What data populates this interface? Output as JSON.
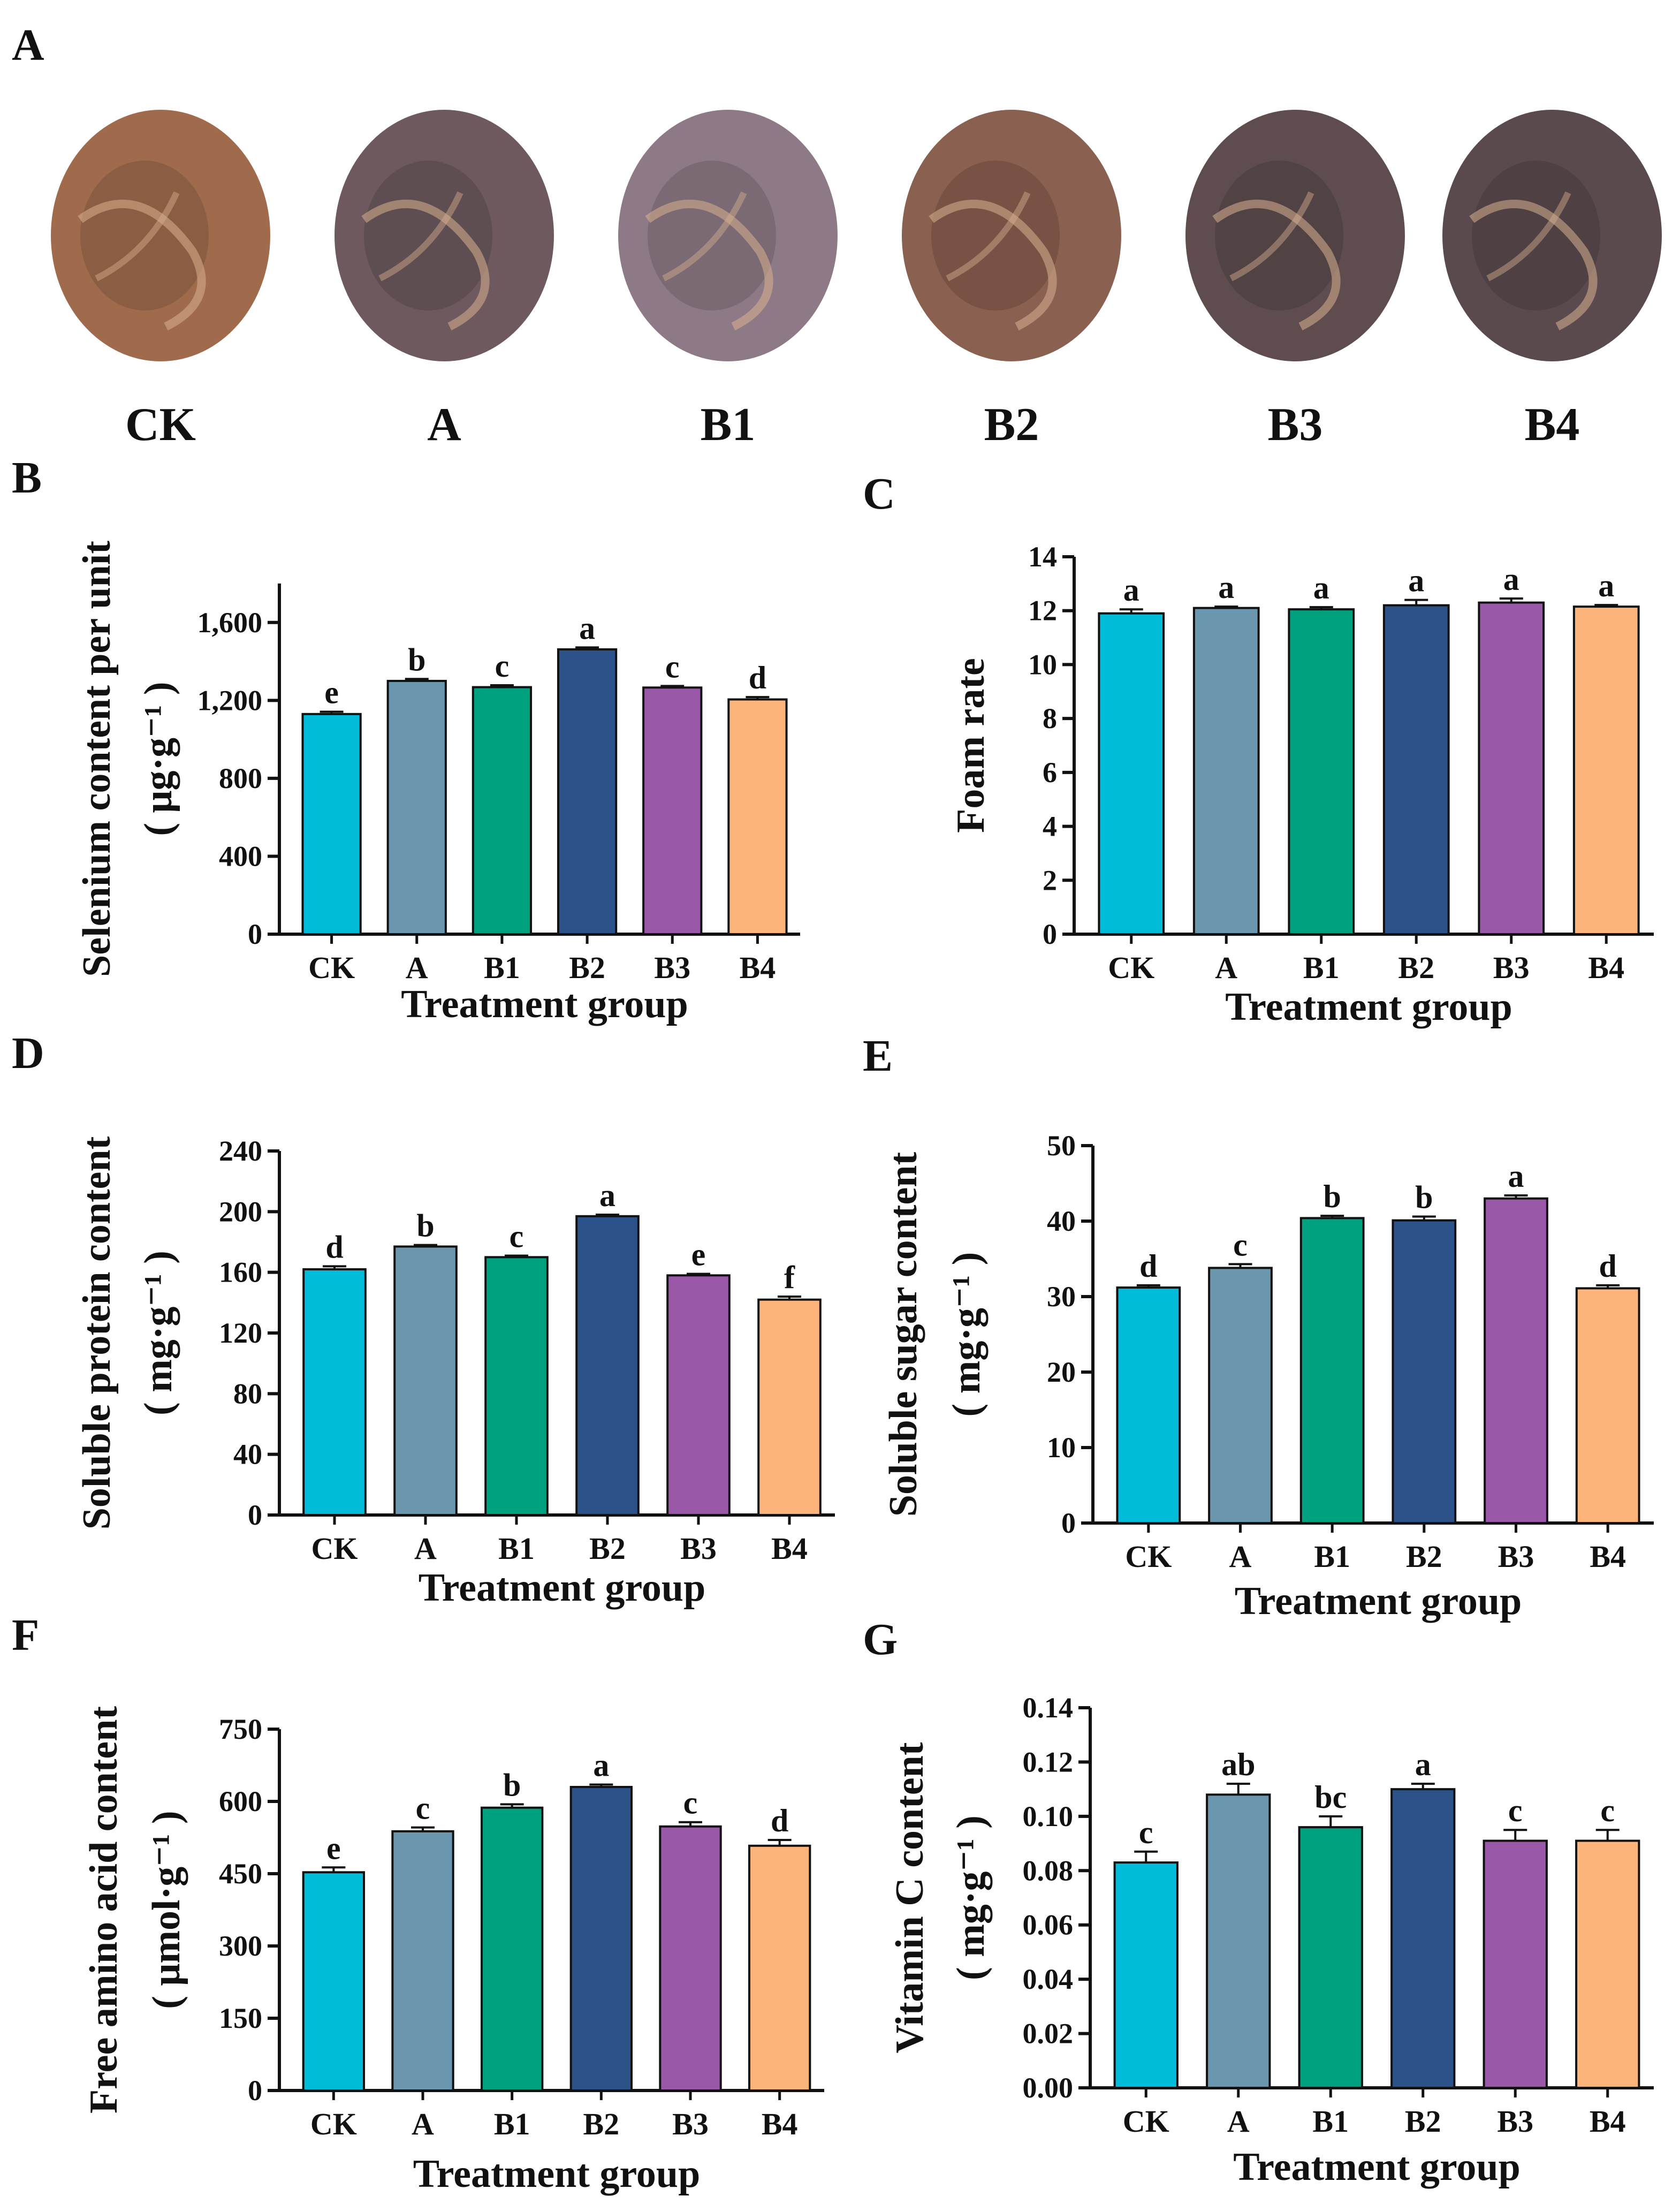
{
  "panel_a": {
    "letter": "A",
    "photos": [
      {
        "label": "CK",
        "color": "#a06b4c"
      },
      {
        "label": "A",
        "color": "#6e5a5e"
      },
      {
        "label": "B1",
        "color": "#8e7a86"
      },
      {
        "label": "B2",
        "color": "#8a6050"
      },
      {
        "label": "B3",
        "color": "#5e4c4e"
      },
      {
        "label": "B4",
        "color": "#5a4a4e"
      }
    ]
  },
  "colors": {
    "CK": "#00bcd8",
    "A": "#6a97ae",
    "B1": "#00a17f",
    "B2": "#2c528a",
    "B3": "#9a58a8",
    "B4": "#fdb47b"
  },
  "chart_data": [
    {
      "panel": "B",
      "type": "bar",
      "ylabel": "Selenium content per unit",
      "yunit": "( μg·g⁻¹ )",
      "xlabel": "Treatment group",
      "categories": [
        "CK",
        "A",
        "B1",
        "B2",
        "B3",
        "B4"
      ],
      "values": [
        1130,
        1300,
        1268,
        1462,
        1266,
        1205
      ],
      "errors": [
        12,
        10,
        10,
        10,
        8,
        12
      ],
      "letters": [
        "e",
        "b",
        "c",
        "a",
        "c",
        "d"
      ],
      "ylim": [
        0,
        1800
      ],
      "yticks": [
        0,
        400,
        800,
        1200,
        1600
      ],
      "yticklabels": [
        "0",
        "400",
        "800",
        "1,200",
        "1,600"
      ]
    },
    {
      "panel": "C",
      "type": "bar",
      "ylabel": "Foam rate",
      "yunit": "",
      "xlabel": "Treatment group",
      "categories": [
        "CK",
        "A",
        "B1",
        "B2",
        "B3",
        "B4"
      ],
      "values": [
        11.9,
        12.1,
        12.05,
        12.2,
        12.3,
        12.15
      ],
      "errors": [
        0.15,
        0.05,
        0.08,
        0.2,
        0.15,
        0.06
      ],
      "letters": [
        "a",
        "a",
        "a",
        "a",
        "a",
        "a"
      ],
      "ylim": [
        0,
        14
      ],
      "yticks": [
        0,
        2,
        4,
        6,
        8,
        10,
        12,
        14
      ],
      "yticklabels": [
        "0",
        "2",
        "4",
        "6",
        "8",
        "10",
        "12",
        "14"
      ]
    },
    {
      "panel": "D",
      "type": "bar",
      "ylabel": "Soluble protein content",
      "yunit": "( mg·g⁻¹ )",
      "xlabel": "Treatment group",
      "categories": [
        "CK",
        "A",
        "B1",
        "B2",
        "B3",
        "B4"
      ],
      "values": [
        162,
        177,
        170,
        197,
        158,
        142
      ],
      "errors": [
        2,
        1,
        1,
        1,
        1,
        2
      ],
      "letters": [
        "d",
        "b",
        "c",
        "a",
        "e",
        "f"
      ],
      "ylim": [
        0,
        240
      ],
      "yticks": [
        0,
        40,
        80,
        120,
        160,
        200,
        240
      ],
      "yticklabels": [
        "0",
        "40",
        "80",
        "120",
        "160",
        "200",
        "240"
      ]
    },
    {
      "panel": "E",
      "type": "bar",
      "ylabel": "Soluble sugar content",
      "yunit": "( mg·g⁻¹ )",
      "xlabel": "Treatment group",
      "categories": [
        "CK",
        "A",
        "B1",
        "B2",
        "B3",
        "B4"
      ],
      "values": [
        31.2,
        33.8,
        40.4,
        40.1,
        43.0,
        31.1
      ],
      "errors": [
        0.3,
        0.5,
        0.3,
        0.5,
        0.4,
        0.4
      ],
      "letters": [
        "d",
        "c",
        "b",
        "b",
        "a",
        "d"
      ],
      "ylim": [
        0,
        50
      ],
      "yticks": [
        0,
        10,
        20,
        30,
        40,
        50
      ],
      "yticklabels": [
        "0",
        "10",
        "20",
        "30",
        "40",
        "50"
      ]
    },
    {
      "panel": "F",
      "type": "bar",
      "ylabel": "Free amino acid content",
      "yunit": "( μmol·g⁻¹ )",
      "xlabel": "Treatment group",
      "categories": [
        "CK",
        "A",
        "B1",
        "B2",
        "B3",
        "B4"
      ],
      "values": [
        453,
        538,
        587,
        630,
        548,
        508
      ],
      "errors": [
        10,
        8,
        7,
        5,
        9,
        12
      ],
      "letters": [
        "e",
        "c",
        "b",
        "a",
        "c",
        "d"
      ],
      "ylim": [
        0,
        750
      ],
      "yticks": [
        0,
        150,
        300,
        450,
        600,
        750
      ],
      "yticklabels": [
        "0",
        "150",
        "300",
        "450",
        "600",
        "750"
      ]
    },
    {
      "panel": "G",
      "type": "bar",
      "ylabel": "Vitamin C content",
      "yunit": "( mg·g⁻¹ )",
      "xlabel": "Treatment group",
      "categories": [
        "CK",
        "A",
        "B1",
        "B2",
        "B3",
        "B4"
      ],
      "values": [
        0.083,
        0.108,
        0.096,
        0.11,
        0.091,
        0.091
      ],
      "errors": [
        0.004,
        0.004,
        0.004,
        0.002,
        0.004,
        0.004
      ],
      "letters": [
        "c",
        "ab",
        "bc",
        "a",
        "c",
        "c"
      ],
      "ylim": [
        0,
        0.14
      ],
      "yticks": [
        0,
        0.02,
        0.04,
        0.06,
        0.08,
        0.1,
        0.12,
        0.14
      ],
      "yticklabels": [
        "0.00",
        "0.02",
        "0.04",
        "0.06",
        "0.08",
        "0.10",
        "0.12",
        "0.14"
      ]
    }
  ]
}
